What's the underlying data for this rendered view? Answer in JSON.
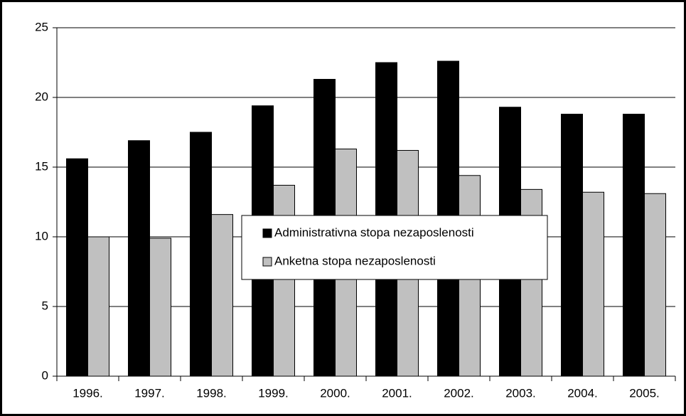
{
  "chart_data": {
    "type": "bar",
    "categories": [
      "1996.",
      "1997.",
      "1998.",
      "1999.",
      "2000.",
      "2001.",
      "2002.",
      "2003.",
      "2004.",
      "2005."
    ],
    "series": [
      {
        "name": "Administrativna stopa nezaposlenosti",
        "color": "#000000",
        "values": [
          15.6,
          16.9,
          17.5,
          19.4,
          21.3,
          22.5,
          22.6,
          19.3,
          18.8,
          18.8
        ]
      },
      {
        "name": "Anketna stopa nezaposlenosti",
        "color": "#c0c0c0",
        "values": [
          10.0,
          9.9,
          11.6,
          13.7,
          16.3,
          16.2,
          14.4,
          13.4,
          13.2,
          13.1
        ]
      }
    ],
    "ylim": [
      0,
      25
    ],
    "yticks": [
      0,
      5,
      10,
      15,
      20,
      25
    ],
    "grid": true,
    "legend_position": "center"
  }
}
